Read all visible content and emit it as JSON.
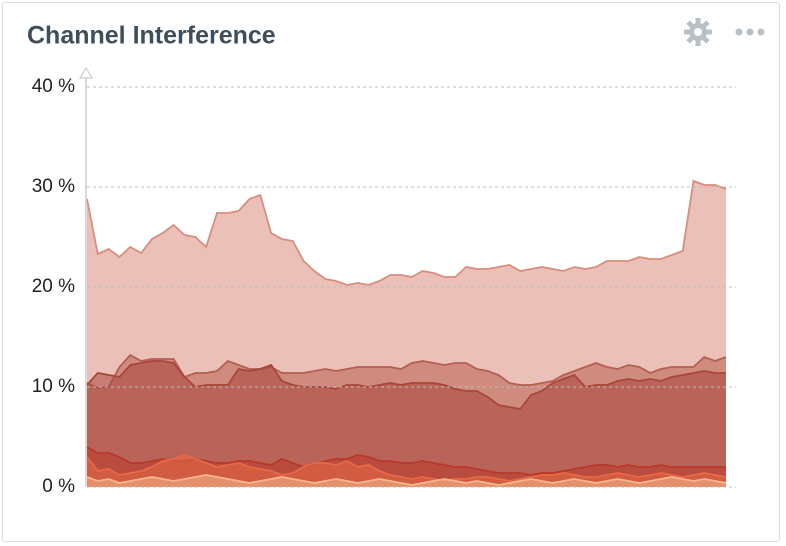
{
  "chart_data": {
    "type": "area",
    "title": "Channel Interference",
    "ylim": [
      0,
      40
    ],
    "yticks": [
      {
        "value": 0,
        "label": "0 %"
      },
      {
        "value": 10,
        "label": "10 %"
      },
      {
        "value": 20,
        "label": "20 %"
      },
      {
        "value": 30,
        "label": "30 %"
      },
      {
        "value": 40,
        "label": "40 %"
      }
    ],
    "grid": true,
    "series": [
      {
        "color": "#d98d7d",
        "values": [
          28.8,
          23.3,
          23.8,
          23,
          24,
          23.4,
          24.8,
          25.4,
          26.2,
          25.2,
          25,
          24,
          27.4,
          27.4,
          27.6,
          28.8,
          29.2,
          25.4,
          24.8,
          24.6,
          22.6,
          21.6,
          20.8,
          20.6,
          20.2,
          20.4,
          20.2,
          20.6,
          21.2,
          21.2,
          21,
          21.6,
          21.4,
          21,
          21,
          22,
          21.8,
          21.8,
          22,
          22.2,
          21.6,
          21.8,
          22,
          21.8,
          21.6,
          22,
          21.8,
          22,
          22.6,
          22.6,
          22.6,
          23,
          22.8,
          22.8,
          23.2,
          23.6,
          30.6,
          30.2,
          30.2,
          29.8
        ]
      },
      {
        "color": "#b65e4f",
        "values": [
          10.4,
          9.9,
          10,
          12,
          13.2,
          12.6,
          12.8,
          12.8,
          12.8,
          11,
          11.4,
          11.4,
          11.6,
          12.6,
          12.2,
          11.8,
          11.8,
          12,
          11.4,
          11.4,
          11.4,
          11.6,
          11.8,
          11.6,
          11.8,
          12,
          12,
          12,
          12,
          11.8,
          12.4,
          12.6,
          12.4,
          12.2,
          12.4,
          12.4,
          11.8,
          11.6,
          11.2,
          10.4,
          10.2,
          10.2,
          10.4,
          10.6,
          11.2,
          11.6,
          12,
          12.4,
          12,
          11.8,
          12.2,
          12,
          11.4,
          11.8,
          12,
          12,
          12,
          13,
          12.6,
          13
        ]
      },
      {
        "color": "#a9463a",
        "values": [
          10.2,
          11.4,
          11.2,
          11.0,
          12.2,
          12.4,
          12.6,
          12.6,
          12.4,
          11.0,
          10.0,
          10.2,
          10.2,
          10.2,
          11.8,
          11.6,
          11.8,
          12.2,
          10.6,
          10.2,
          10.0,
          10.0,
          10.0,
          9.8,
          10.2,
          10.2,
          10.0,
          10.2,
          10.4,
          10.2,
          10.4,
          10.4,
          10.4,
          10.2,
          9.8,
          9.6,
          9.6,
          9.0,
          8.2,
          8.0,
          7.8,
          9.2,
          9.6,
          10.4,
          10.8,
          11.2,
          10.0,
          10.2,
          10.2,
          10.6,
          10.8,
          10.6,
          10.8,
          10.6,
          11.0,
          11.2,
          11.4,
          11.6,
          11.4,
          11.4
        ]
      },
      {
        "color": "#b8382a",
        "values": [
          4,
          3.4,
          3.4,
          3.0,
          2.4,
          2.4,
          2.6,
          2.8,
          2.6,
          2.6,
          2.8,
          2.6,
          2.4,
          2.4,
          2.6,
          2.6,
          2.4,
          2.2,
          2.8,
          2.4,
          2.0,
          2.2,
          2.6,
          2.8,
          2.8,
          3.2,
          3.0,
          2.6,
          2.6,
          2.4,
          2.4,
          2.6,
          2.4,
          2.2,
          2.0,
          2.0,
          1.8,
          1.6,
          1.4,
          1.4,
          1.4,
          1.2,
          1.4,
          1.4,
          1.6,
          1.8,
          2.0,
          2.2,
          2.2,
          2.0,
          2.2,
          2.0,
          2.0,
          2.2,
          2.0,
          2.0,
          2.0,
          2.0,
          2.0,
          2.0
        ]
      },
      {
        "color": "#e86a45",
        "values": [
          3,
          1.6,
          1.8,
          1.2,
          1.4,
          1.6,
          2.0,
          2.6,
          2.8,
          3.2,
          2.8,
          2.4,
          2.0,
          2.2,
          2.4,
          2.0,
          1.8,
          1.6,
          1.2,
          1.4,
          2.0,
          2.4,
          2.4,
          2.2,
          2.6,
          2.0,
          2.2,
          1.6,
          1.2,
          1.0,
          0.8,
          1.0,
          0.8,
          0.6,
          0.8,
          0.8,
          1.0,
          1.0,
          0.8,
          0.6,
          0.8,
          1.0,
          1.2,
          1.2,
          1.4,
          1.2,
          1.0,
          1.0,
          1.2,
          1.4,
          1.2,
          1.0,
          1.2,
          1.4,
          1.2,
          1.0,
          1.2,
          1.4,
          1.2,
          1.0
        ]
      },
      {
        "color": "#f6b98f",
        "values": [
          1.0,
          0.6,
          0.8,
          0.4,
          0.6,
          0.8,
          1.0,
          0.8,
          0.6,
          0.8,
          1.0,
          1.2,
          1.0,
          0.8,
          0.6,
          0.4,
          0.6,
          0.8,
          1.0,
          0.8,
          0.6,
          0.4,
          0.6,
          0.8,
          0.6,
          0.4,
          0.6,
          0.8,
          0.6,
          0.4,
          0.2,
          0.4,
          0.6,
          0.8,
          0.6,
          0.4,
          0.6,
          0.4,
          0.2,
          0.4,
          0.6,
          0.8,
          0.6,
          0.4,
          0.6,
          0.8,
          0.6,
          0.4,
          0.6,
          0.8,
          0.6,
          0.4,
          0.6,
          0.8,
          1.0,
          0.8,
          0.6,
          0.8,
          0.6,
          0.4
        ]
      }
    ]
  }
}
